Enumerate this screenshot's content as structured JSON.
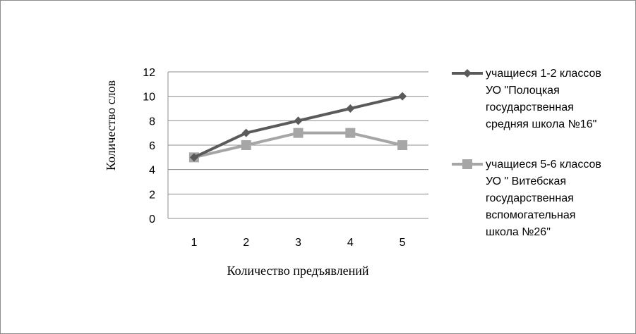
{
  "chart_data": {
    "type": "line",
    "x": [
      "1",
      "2",
      "3",
      "4",
      "5"
    ],
    "xlabel": "Количество предъявлений",
    "ylabel": "Количество слов",
    "ylim": [
      0,
      12
    ],
    "yticks": [
      0,
      2,
      4,
      6,
      8,
      10,
      12
    ],
    "grid": "horizontal",
    "legend_position": "right",
    "series": [
      {
        "name": "учащиеся 1-2 классов УО \"Полоцкая государственная средняя школа №16\"",
        "legend_lines": [
          "учащиеся 1-2 классов",
          "УО \"Полоцкая",
          "государственная",
          "средняя школа №16\""
        ],
        "values": [
          5,
          7,
          8,
          9,
          10
        ],
        "color": "#5a5a5a",
        "marker": "diamond"
      },
      {
        "name": "учащиеся 5-6 классов УО \" Витебская государственная вспомогательная школа №26\"",
        "legend_lines": [
          "учащиеся 5-6 классов",
          "УО \"  Витебская",
          "государственная",
          "вспомогательная",
          "школа №26\""
        ],
        "values": [
          5,
          6,
          7,
          7,
          6
        ],
        "color": "#a6a6a6",
        "marker": "square"
      }
    ]
  }
}
